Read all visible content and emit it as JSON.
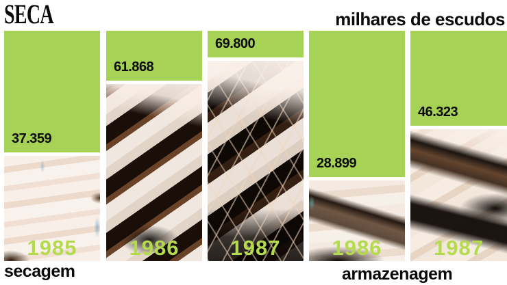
{
  "header": {
    "title": "SECA",
    "units": "milhares de escudos"
  },
  "footer": {
    "left_caption": "secagem",
    "right_caption": "armazenagem"
  },
  "colors": {
    "bar_green": "#a6d256",
    "year_label_green": "#b4da4e",
    "text_black": "#0a0a0a"
  },
  "chart_data": {
    "type": "bar",
    "title": "SECA",
    "units": "milhares de escudos",
    "ylim": [
      0,
      79000
    ],
    "note": "pictorial bars: visible fish-photo height encodes the value; a green block covers the remainder from the top",
    "groups": [
      {
        "name": "secagem",
        "categories": [
          "1985",
          "1986",
          "1987"
        ],
        "values": [
          37359,
          61868,
          69800
        ]
      },
      {
        "name": "armazenagem",
        "categories": [
          "1986",
          "1987"
        ],
        "values": [
          28899,
          46323
        ]
      }
    ],
    "columns": [
      {
        "group": "secagem",
        "year": "1985",
        "value": 37359,
        "value_label": "37.359"
      },
      {
        "group": "secagem",
        "year": "1986",
        "value": 61868,
        "value_label": "61.868"
      },
      {
        "group": "secagem",
        "year": "1987",
        "value": 69800,
        "value_label": "69.800"
      },
      {
        "group": "armazenagem",
        "year": "1986",
        "value": 28899,
        "value_label": "28.899"
      },
      {
        "group": "armazenagem",
        "year": "1987",
        "value": 46323,
        "value_label": "46.323"
      }
    ]
  }
}
